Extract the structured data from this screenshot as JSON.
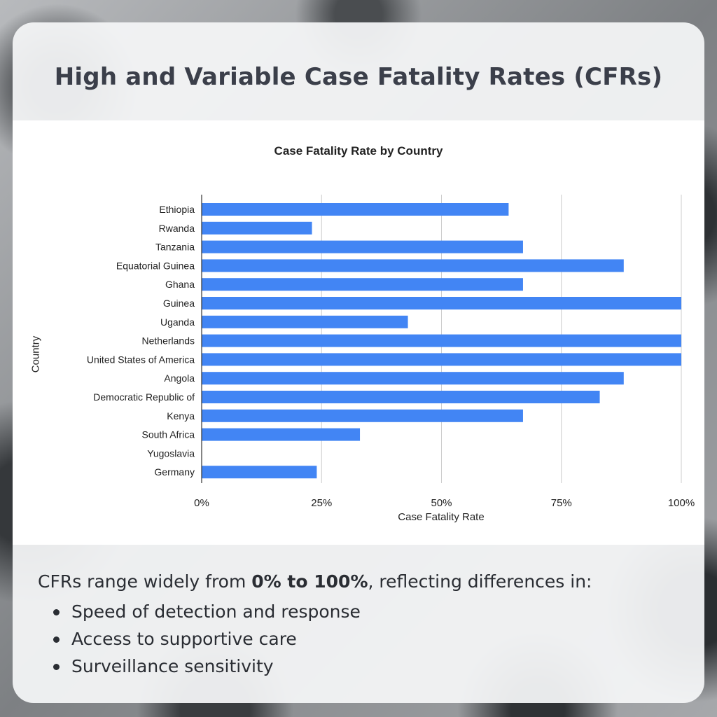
{
  "slide": {
    "title": "High and Variable Case Fatality Rates (CFRs)"
  },
  "chart_data": {
    "type": "bar",
    "orientation": "horizontal",
    "title": "Case Fatality Rate by Country",
    "xlabel": "Case Fatality Rate",
    "ylabel": "Country",
    "xlim": [
      0,
      1
    ],
    "xticks": [
      "0%",
      "25%",
      "50%",
      "75%",
      "100%"
    ],
    "xtick_values": [
      0,
      0.25,
      0.5,
      0.75,
      1.0
    ],
    "grid": true,
    "bar_color": "#4285f4",
    "categories": [
      "Ethiopia",
      "Rwanda",
      "Tanzania",
      "Equatorial Guinea",
      "Ghana",
      "Guinea",
      "Uganda",
      "Netherlands",
      "United States of America",
      "Angola",
      "Democratic Republic of",
      "Kenya",
      "South Africa",
      "Yugoslavia",
      "Germany"
    ],
    "values": [
      0.64,
      0.23,
      0.67,
      0.88,
      0.67,
      1.0,
      0.43,
      1.0,
      1.0,
      0.88,
      0.83,
      0.67,
      0.33,
      0.0,
      0.24
    ]
  },
  "summary": {
    "intro_pre": "CFRs range widely from ",
    "intro_bold": "0% to 100%",
    "intro_post": ", reflecting differences in:",
    "bullets": [
      "Speed of detection and response",
      "Access to supportive care",
      "Surveillance sensitivity"
    ]
  }
}
